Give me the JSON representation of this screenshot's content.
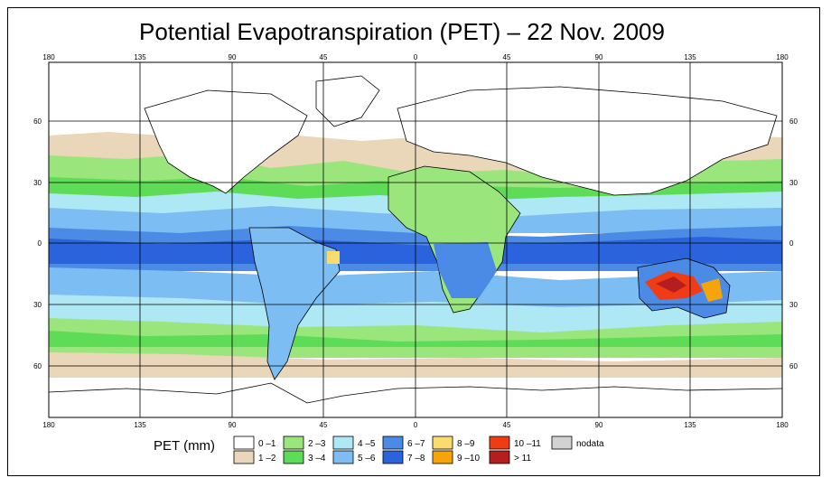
{
  "title": "Potential Evapotranspiration (PET) – 22 Nov. 2009",
  "map": {
    "lon_ticks_top": [
      "180",
      "135",
      "90",
      "45",
      "0",
      "45",
      "90",
      "135",
      "180"
    ],
    "lon_ticks_bottom": [
      "180",
      "135",
      "90",
      "45",
      "0",
      "45",
      "90",
      "135",
      "180"
    ],
    "lat_ticks_left": [
      "60",
      "30",
      "0",
      "30",
      "60"
    ],
    "lat_ticks_right": [
      "60",
      "30",
      "0",
      "30",
      "60"
    ]
  },
  "legend": {
    "title": "PET (mm)",
    "items": [
      {
        "label": "0 –1",
        "color": "#ffffff"
      },
      {
        "label": "1 –2",
        "color": "#ead6b8"
      },
      {
        "label": "2 –3",
        "color": "#9be67c"
      },
      {
        "label": "3 –4",
        "color": "#5fdc57"
      },
      {
        "label": "4 –5",
        "color": "#aee8f5"
      },
      {
        "label": "5 –6",
        "color": "#7cbdf3"
      },
      {
        "label": "6 –7",
        "color": "#4b8be6"
      },
      {
        "label": "7 –8",
        "color": "#2a63dc"
      },
      {
        "label": "8 –9",
        "color": "#fadc6e"
      },
      {
        "label": "9 –10",
        "color": "#f5a50a"
      },
      {
        "label": "10 –11",
        "color": "#f03c14"
      },
      {
        "label": "> 11",
        "color": "#b41e1e"
      },
      {
        "label": "nodata",
        "color": "#d2d2d2"
      }
    ]
  }
}
